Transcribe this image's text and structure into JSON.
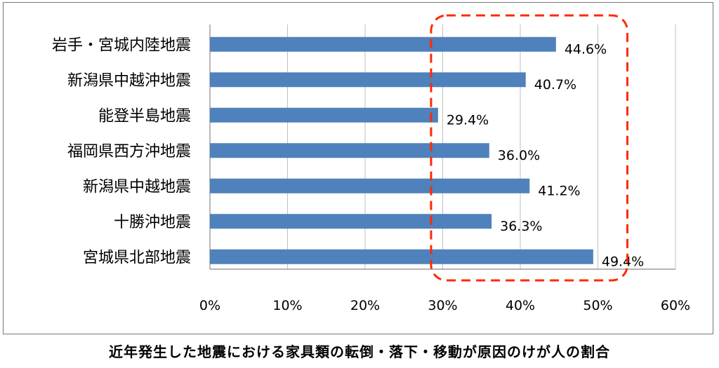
{
  "caption": "近年発生した地震における家具類の転倒・落下・移動が原因のけが人の割合",
  "colors": {
    "bar": "#4F81BD",
    "grid": "#bfbfbf",
    "highlight": "#ff2a00",
    "text": "#000000"
  },
  "chart_data": {
    "type": "bar",
    "orientation": "horizontal",
    "categories": [
      "岩手・宮城内陸地震",
      "新潟県中越沖地震",
      "能登半島地震",
      "福岡県西方沖地震",
      "新潟県中越地震",
      "十勝沖地震",
      "宮城県北部地震"
    ],
    "values": [
      44.6,
      40.7,
      29.4,
      36.0,
      41.2,
      36.3,
      49.4
    ],
    "value_labels": [
      "44.6%",
      "40.7%",
      "29.4%",
      "36.0%",
      "41.2%",
      "36.3%",
      "49.4%"
    ],
    "xlim": [
      0,
      60
    ],
    "xticks": [
      0,
      10,
      20,
      30,
      40,
      50,
      60
    ],
    "xtick_labels": [
      "0%",
      "10%",
      "20%",
      "30%",
      "40%",
      "50%",
      "60%"
    ],
    "grid": true,
    "highlight_range": [
      28.5,
      53.8
    ],
    "title": "",
    "xlabel": "",
    "ylabel": ""
  }
}
